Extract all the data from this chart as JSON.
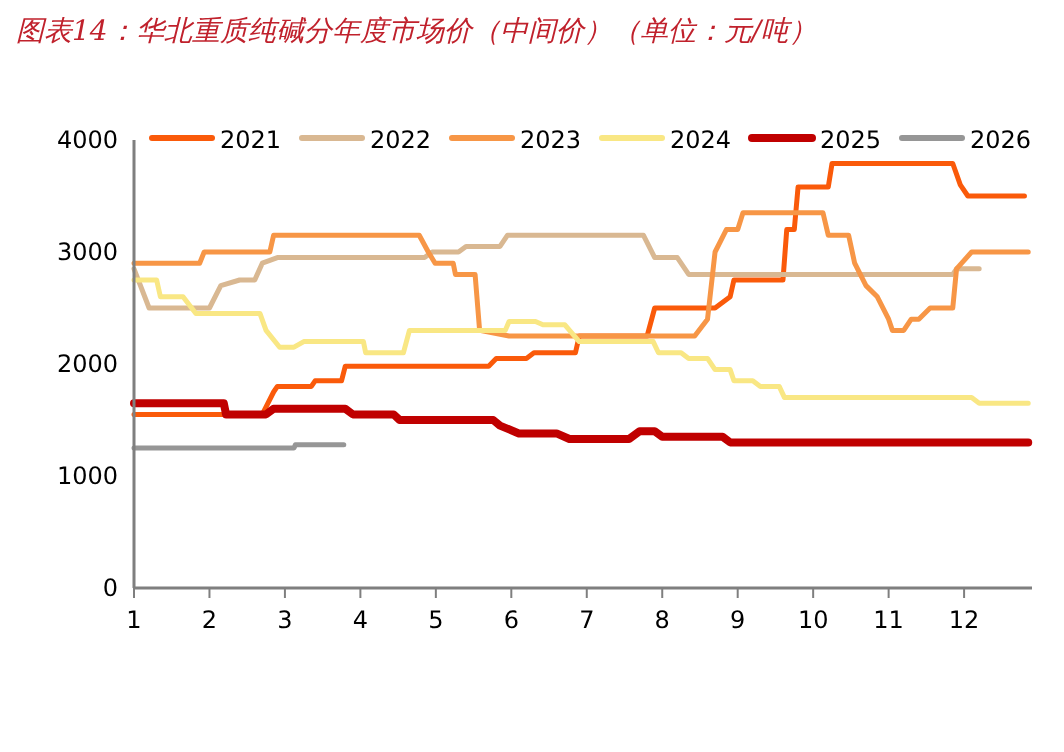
{
  "chart_data": {
    "type": "line",
    "title": "图表14：华北重质纯碱分年度市场价（中间价）（单位：元/吨）",
    "xlim": [
      1,
      12.9
    ],
    "xticks": [
      1,
      2,
      3,
      4,
      5,
      6,
      7,
      8,
      9,
      10,
      11,
      12
    ],
    "ylim": [
      0,
      4000
    ],
    "yticks": [
      0,
      1000,
      2000,
      3000,
      4000
    ],
    "grid": false,
    "legend": "top",
    "marker": "none",
    "line_style": "solid",
    "series": [
      {
        "name": "2021",
        "color": "#fa5a0a",
        "x": [
          1,
          2.7,
          2.85,
          2.9,
          3.35,
          3.4,
          3.75,
          3.8,
          5.7,
          5.8,
          6.2,
          6.3,
          6.85,
          6.9,
          7.8,
          7.9,
          8.7,
          8.9,
          8.95,
          9.6,
          9.65,
          9.75,
          9.8,
          10.2,
          10.25,
          11.85,
          11.95,
          12.05,
          12.8
        ],
        "values": [
          1550,
          1550,
          1750,
          1800,
          1800,
          1850,
          1850,
          1980,
          1980,
          2050,
          2050,
          2100,
          2100,
          2250,
          2250,
          2500,
          2500,
          2600,
          2750,
          2750,
          3200,
          3200,
          3580,
          3580,
          3790,
          3790,
          3600,
          3500,
          3500
        ]
      },
      {
        "name": "2022",
        "color": "#d9b892",
        "x": [
          1,
          1.2,
          2,
          2.15,
          2.4,
          2.6,
          2.7,
          2.9,
          4.85,
          4.95,
          5.3,
          5.4,
          5.85,
          5.95,
          7.75,
          7.9,
          8.2,
          8.35,
          11.85,
          11.9,
          12.2
        ],
        "values": [
          2850,
          2500,
          2500,
          2700,
          2750,
          2750,
          2900,
          2950,
          2950,
          3000,
          3000,
          3050,
          3050,
          3150,
          3150,
          2950,
          2950,
          2800,
          2800,
          2850,
          2850
        ]
      },
      {
        "name": "2023",
        "color": "#f79646",
        "x": [
          1,
          1.87,
          1.93,
          2.8,
          2.85,
          4.78,
          4.9,
          4.99,
          5.23,
          5.26,
          5.52,
          5.58,
          5.97,
          8.43,
          8.6,
          8.7,
          8.85,
          9.0,
          9.07,
          10.13,
          10.2,
          10.47,
          10.55,
          10.7,
          10.85,
          11.0,
          11.05,
          11.2,
          11.3,
          11.4,
          11.55,
          11.85,
          11.9,
          12.1,
          12.85
        ],
        "values": [
          2900,
          2900,
          3000,
          3000,
          3150,
          3150,
          3000,
          2900,
          2900,
          2800,
          2800,
          2300,
          2250,
          2250,
          2400,
          3000,
          3200,
          3200,
          3350,
          3350,
          3150,
          3150,
          2900,
          2700,
          2600,
          2400,
          2300,
          2300,
          2400,
          2400,
          2500,
          2500,
          2850,
          3000,
          3000
        ]
      },
      {
        "name": "2024",
        "color": "#f9e784",
        "x": [
          1,
          1.3,
          1.35,
          1.65,
          1.82,
          2.67,
          2.75,
          2.93,
          3.12,
          3.25,
          4.04,
          4.07,
          4.57,
          4.65,
          5.92,
          5.97,
          6.32,
          6.42,
          6.71,
          6.9,
          7.88,
          7.95,
          8.25,
          8.35,
          8.6,
          8.7,
          8.9,
          8.95,
          9.2,
          9.3,
          9.55,
          9.62,
          12.1,
          12.2,
          12.85
        ],
        "values": [
          2750,
          2750,
          2600,
          2600,
          2450,
          2450,
          2300,
          2150,
          2150,
          2200,
          2200,
          2100,
          2100,
          2300,
          2300,
          2380,
          2380,
          2350,
          2350,
          2200,
          2200,
          2100,
          2100,
          2050,
          2050,
          1950,
          1950,
          1850,
          1850,
          1800,
          1800,
          1700,
          1700,
          1650,
          1650
        ]
      },
      {
        "name": "2025",
        "color": "#c00000",
        "x": [
          1,
          2.19,
          2.22,
          2.75,
          2.85,
          3.8,
          3.9,
          4.44,
          4.52,
          5.76,
          5.85,
          6.1,
          6.6,
          6.77,
          7.56,
          7.7,
          7.9,
          8.0,
          8.8,
          8.9,
          12.85
        ],
        "values": [
          1650,
          1650,
          1550,
          1550,
          1600,
          1600,
          1550,
          1550,
          1500,
          1500,
          1450,
          1380,
          1380,
          1330,
          1330,
          1400,
          1400,
          1350,
          1350,
          1300,
          1300
        ]
      },
      {
        "name": "2026",
        "color": "#969696",
        "x": [
          1,
          3.12,
          3.14,
          3.78
        ],
        "values": [
          1250,
          1250,
          1280,
          1280
        ]
      }
    ]
  }
}
